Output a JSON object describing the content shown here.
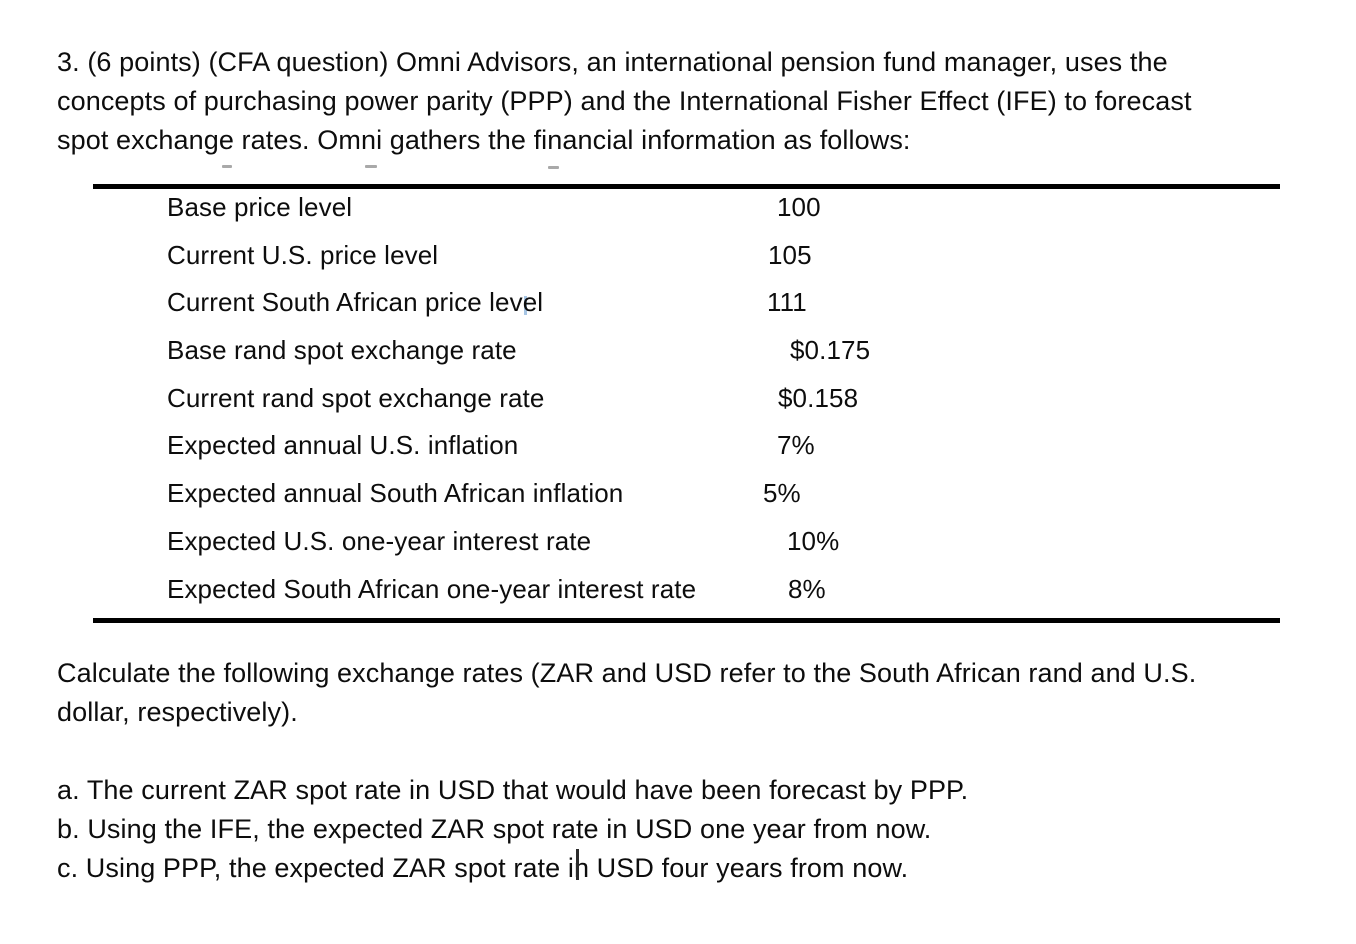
{
  "document": {
    "intro_lines": [
      "3. (6 points) (CFA question) Omni Advisors, an international pension fund manager, uses the",
      "concepts of purchasing power parity (PPP) and the International Fisher Effect (IFE) to forecast",
      "spot exchange rates. Omni gathers the financial information as follows:"
    ],
    "table": {
      "rows": [
        {
          "label": "Base price level",
          "value": "100"
        },
        {
          "label": "Current U.S. price level",
          "value": "105"
        },
        {
          "label": "Current South African price level",
          "value": "111"
        },
        {
          "label": "Base rand spot exchange rate",
          "value": "$0.175"
        },
        {
          "label": "Current rand spot exchange rate",
          "value": "$0.158"
        },
        {
          "label": "Expected annual U.S. inflation",
          "value": "7%"
        },
        {
          "label": "Expected annual South African inflation",
          "value": "5%"
        },
        {
          "label": "Expected U.S. one-year interest rate",
          "value": "10%"
        },
        {
          "label": "Expected South African one-year interest rate",
          "value": "8%"
        }
      ]
    },
    "calculate_lines": [
      "Calculate the following exchange rates (ZAR and USD refer to the South African rand and U.S.",
      "dollar, respectively)."
    ],
    "questions": [
      "a. The current ZAR spot rate in USD that would have been forecast by PPP.",
      "b. Using the IFE, the expected ZAR spot rate in USD one year from now.",
      "c. Using PPP, the expected ZAR spot rate in USD four years from now."
    ],
    "colors": {
      "text": "#0d0d0d",
      "rule": "#000000",
      "collaborator_caret": "#a6c5e4",
      "text_caret": "#2b2b2b"
    }
  }
}
